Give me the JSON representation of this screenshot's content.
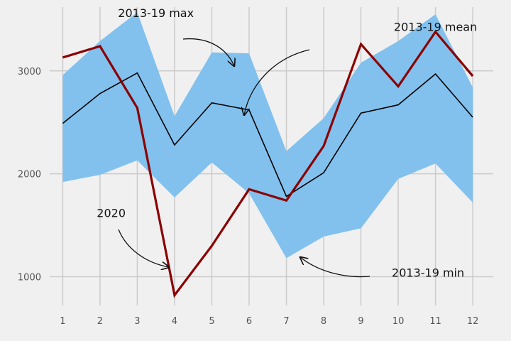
{
  "chart_data": {
    "type": "line",
    "title": "",
    "xlabel": "",
    "ylabel": "",
    "x": [
      1,
      2,
      3,
      4,
      5,
      6,
      7,
      8,
      9,
      10,
      11,
      12
    ],
    "xlim": [
      0.65,
      12.55
    ],
    "ylim": [
      720,
      3620
    ],
    "yticks": [
      1000,
      2000,
      3000
    ],
    "grid": true,
    "band": {
      "label": "2013-19 min to max",
      "upper": [
        2960,
        3290,
        3570,
        2560,
        3180,
        3170,
        2220,
        2540,
        3080,
        3290,
        3550,
        2840
      ],
      "lower": [
        1920,
        1990,
        2130,
        1770,
        2110,
        1810,
        1180,
        1390,
        1470,
        1950,
        2100,
        1720
      ]
    },
    "series": [
      {
        "name": "2013-19 mean",
        "values": [
          2490,
          2780,
          2980,
          2280,
          2690,
          2620,
          1780,
          2010,
          2590,
          2670,
          2970,
          2550
        ]
      },
      {
        "name": "2020",
        "values": [
          3130,
          3240,
          2640,
          820,
          1300,
          1850,
          1740,
          2270,
          3260,
          2850,
          3380,
          2950
        ]
      }
    ],
    "annotations": [
      {
        "text": "2013-19 max",
        "x": 3.5,
        "y": 3525
      },
      {
        "text": "2013-19 mean",
        "x": 11.0,
        "y": 3390
      },
      {
        "text": "2020",
        "x": 2.3,
        "y": 1580
      },
      {
        "text": "2013-19 min",
        "x": 10.8,
        "y": 1000
      }
    ],
    "colors": {
      "background": "#f0f0f0",
      "grid": "#cbcbcb",
      "band": "#82c1ee",
      "mean": "#000000",
      "current": "#8b0000"
    }
  }
}
